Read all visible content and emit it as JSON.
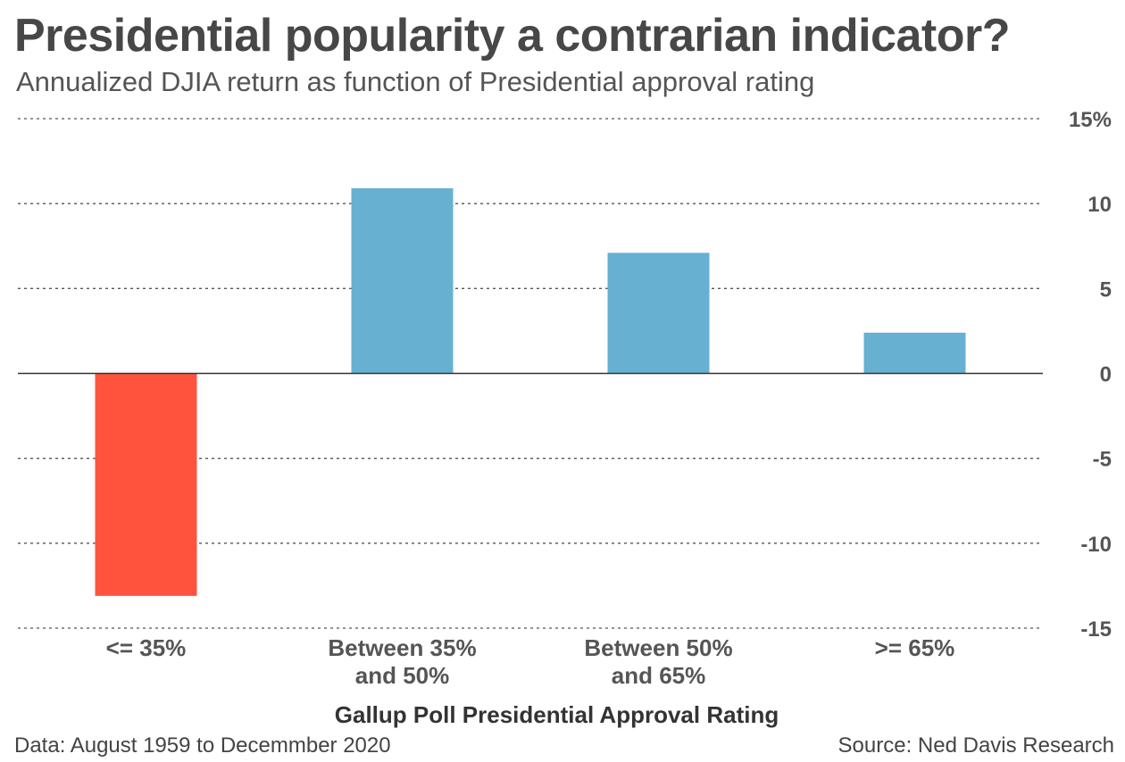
{
  "chart_data": {
    "type": "bar",
    "title": "Presidential popularity a contrarian indicator?",
    "subtitle": "Annualized DJIA return as  function of Presidential approval rating",
    "xlabel": "Gallup Poll Presidential Approval Rating",
    "ylabel": "",
    "categories": [
      [
        "<= 35%"
      ],
      [
        "Between 35%",
        "and 50%"
      ],
      [
        "Between 50%",
        "and 65%"
      ],
      [
        ">= 65%"
      ]
    ],
    "values": [
      -13.1,
      10.9,
      7.1,
      2.4
    ],
    "ylim": [
      -15,
      15
    ],
    "yticks": [
      15,
      10,
      5,
      0,
      -5,
      -10,
      -15
    ],
    "ytick_labels": [
      "15%",
      "10",
      "5",
      "0",
      "-5",
      "-10",
      "-15"
    ],
    "grid": true,
    "colors": {
      "positive": "#67b0d1",
      "negative": "#ff533d",
      "grid": "#555555",
      "zero_line": "#333333"
    },
    "source": "Source: Ned Davis Research",
    "data_note": "Data: August 1959 to Decemmber 2020"
  }
}
